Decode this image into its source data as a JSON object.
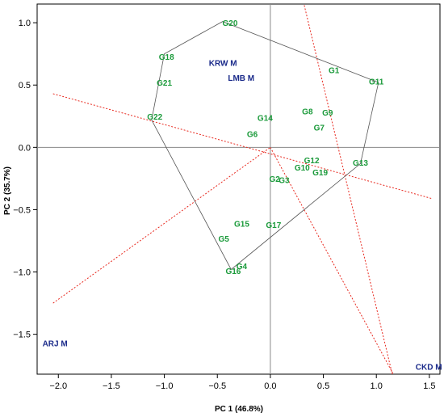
{
  "chart_data": {
    "type": "scatter",
    "title": "",
    "xlabel": "PC 1 (46.8%)",
    "ylabel": "PC 2 (35.7%)",
    "xlim": [
      -2.2,
      1.6
    ],
    "ylim": [
      -1.82,
      1.15
    ],
    "xticks": [
      -2.0,
      -1.5,
      -1.0,
      -0.5,
      0.0,
      0.5,
      1.0,
      1.5
    ],
    "xtick_labels": [
      "−2.0",
      "−1.5",
      "−1.0",
      "−0.5",
      "0.0",
      "0.5",
      "1.0",
      "1.5"
    ],
    "yticks": [
      -1.5,
      -1.0,
      -0.5,
      0.0,
      0.5,
      1.0
    ],
    "ytick_labels": [
      "−1.5",
      "−1.0",
      "−0.5",
      "0.0",
      "0.5",
      "1.0"
    ],
    "grid": false,
    "colors": {
      "genotype": "#1a9a3a",
      "environment": "#1a2a8a",
      "hull": "#555555",
      "rays": "#e8281e",
      "origin_lines": "#888888"
    },
    "genotypes": [
      {
        "label": "G20",
        "x": -0.38,
        "y": 1.0
      },
      {
        "label": "G18",
        "x": -0.98,
        "y": 0.73
      },
      {
        "label": "G21",
        "x": -1.0,
        "y": 0.52
      },
      {
        "label": "G22",
        "x": -1.09,
        "y": 0.25
      },
      {
        "label": "G1",
        "x": 0.6,
        "y": 0.62
      },
      {
        "label": "G11",
        "x": 1.0,
        "y": 0.53
      },
      {
        "label": "G14",
        "x": -0.05,
        "y": 0.24
      },
      {
        "label": "G8",
        "x": 0.35,
        "y": 0.29
      },
      {
        "label": "G9",
        "x": 0.54,
        "y": 0.28
      },
      {
        "label": "G7",
        "x": 0.46,
        "y": 0.16
      },
      {
        "label": "G6",
        "x": -0.17,
        "y": 0.11
      },
      {
        "label": "G12",
        "x": 0.39,
        "y": -0.1
      },
      {
        "label": "G13",
        "x": 0.85,
        "y": -0.12
      },
      {
        "label": "G10",
        "x": 0.3,
        "y": -0.16
      },
      {
        "label": "G19",
        "x": 0.47,
        "y": -0.2
      },
      {
        "label": "G2",
        "x": 0.04,
        "y": -0.25
      },
      {
        "label": "G3",
        "x": 0.13,
        "y": -0.26
      },
      {
        "label": "G15",
        "x": -0.27,
        "y": -0.61
      },
      {
        "label": "G17",
        "x": 0.03,
        "y": -0.62
      },
      {
        "label": "G5",
        "x": -0.44,
        "y": -0.73
      },
      {
        "label": "G4",
        "x": -0.27,
        "y": -0.95
      },
      {
        "label": "G16",
        "x": -0.35,
        "y": -0.99
      }
    ],
    "environments": [
      {
        "label": "KRW M",
        "x": -0.58,
        "y": 0.68
      },
      {
        "label": "LMB M",
        "x": -0.4,
        "y": 0.56
      },
      {
        "label": "ARJ M",
        "x": -2.15,
        "y": -1.57
      },
      {
        "label": "CKD M",
        "x": 1.37,
        "y": -1.76
      }
    ],
    "hull": [
      {
        "x": -0.45,
        "y": 1.01
      },
      {
        "x": 1.02,
        "y": 0.52
      },
      {
        "x": 0.85,
        "y": -0.13
      },
      {
        "x": -0.37,
        "y": -0.98
      },
      {
        "x": -1.12,
        "y": 0.22
      },
      {
        "x": -1.0,
        "y": 0.75
      }
    ],
    "rays": [
      {
        "from": {
          "x": -2.05,
          "y": 0.43
        },
        "to": {
          "x": 1.52,
          "y": -0.41
        }
      },
      {
        "from": {
          "x": -2.05,
          "y": -1.25
        },
        "to": {
          "x": 0.0,
          "y": 0.0
        }
      },
      {
        "from": {
          "x": 0.32,
          "y": 1.14
        },
        "to": {
          "x": 1.15,
          "y": -1.82
        }
      },
      {
        "from": {
          "x": 0.0,
          "y": 0.0
        },
        "to": {
          "x": 1.16,
          "y": -1.82
        }
      }
    ]
  }
}
